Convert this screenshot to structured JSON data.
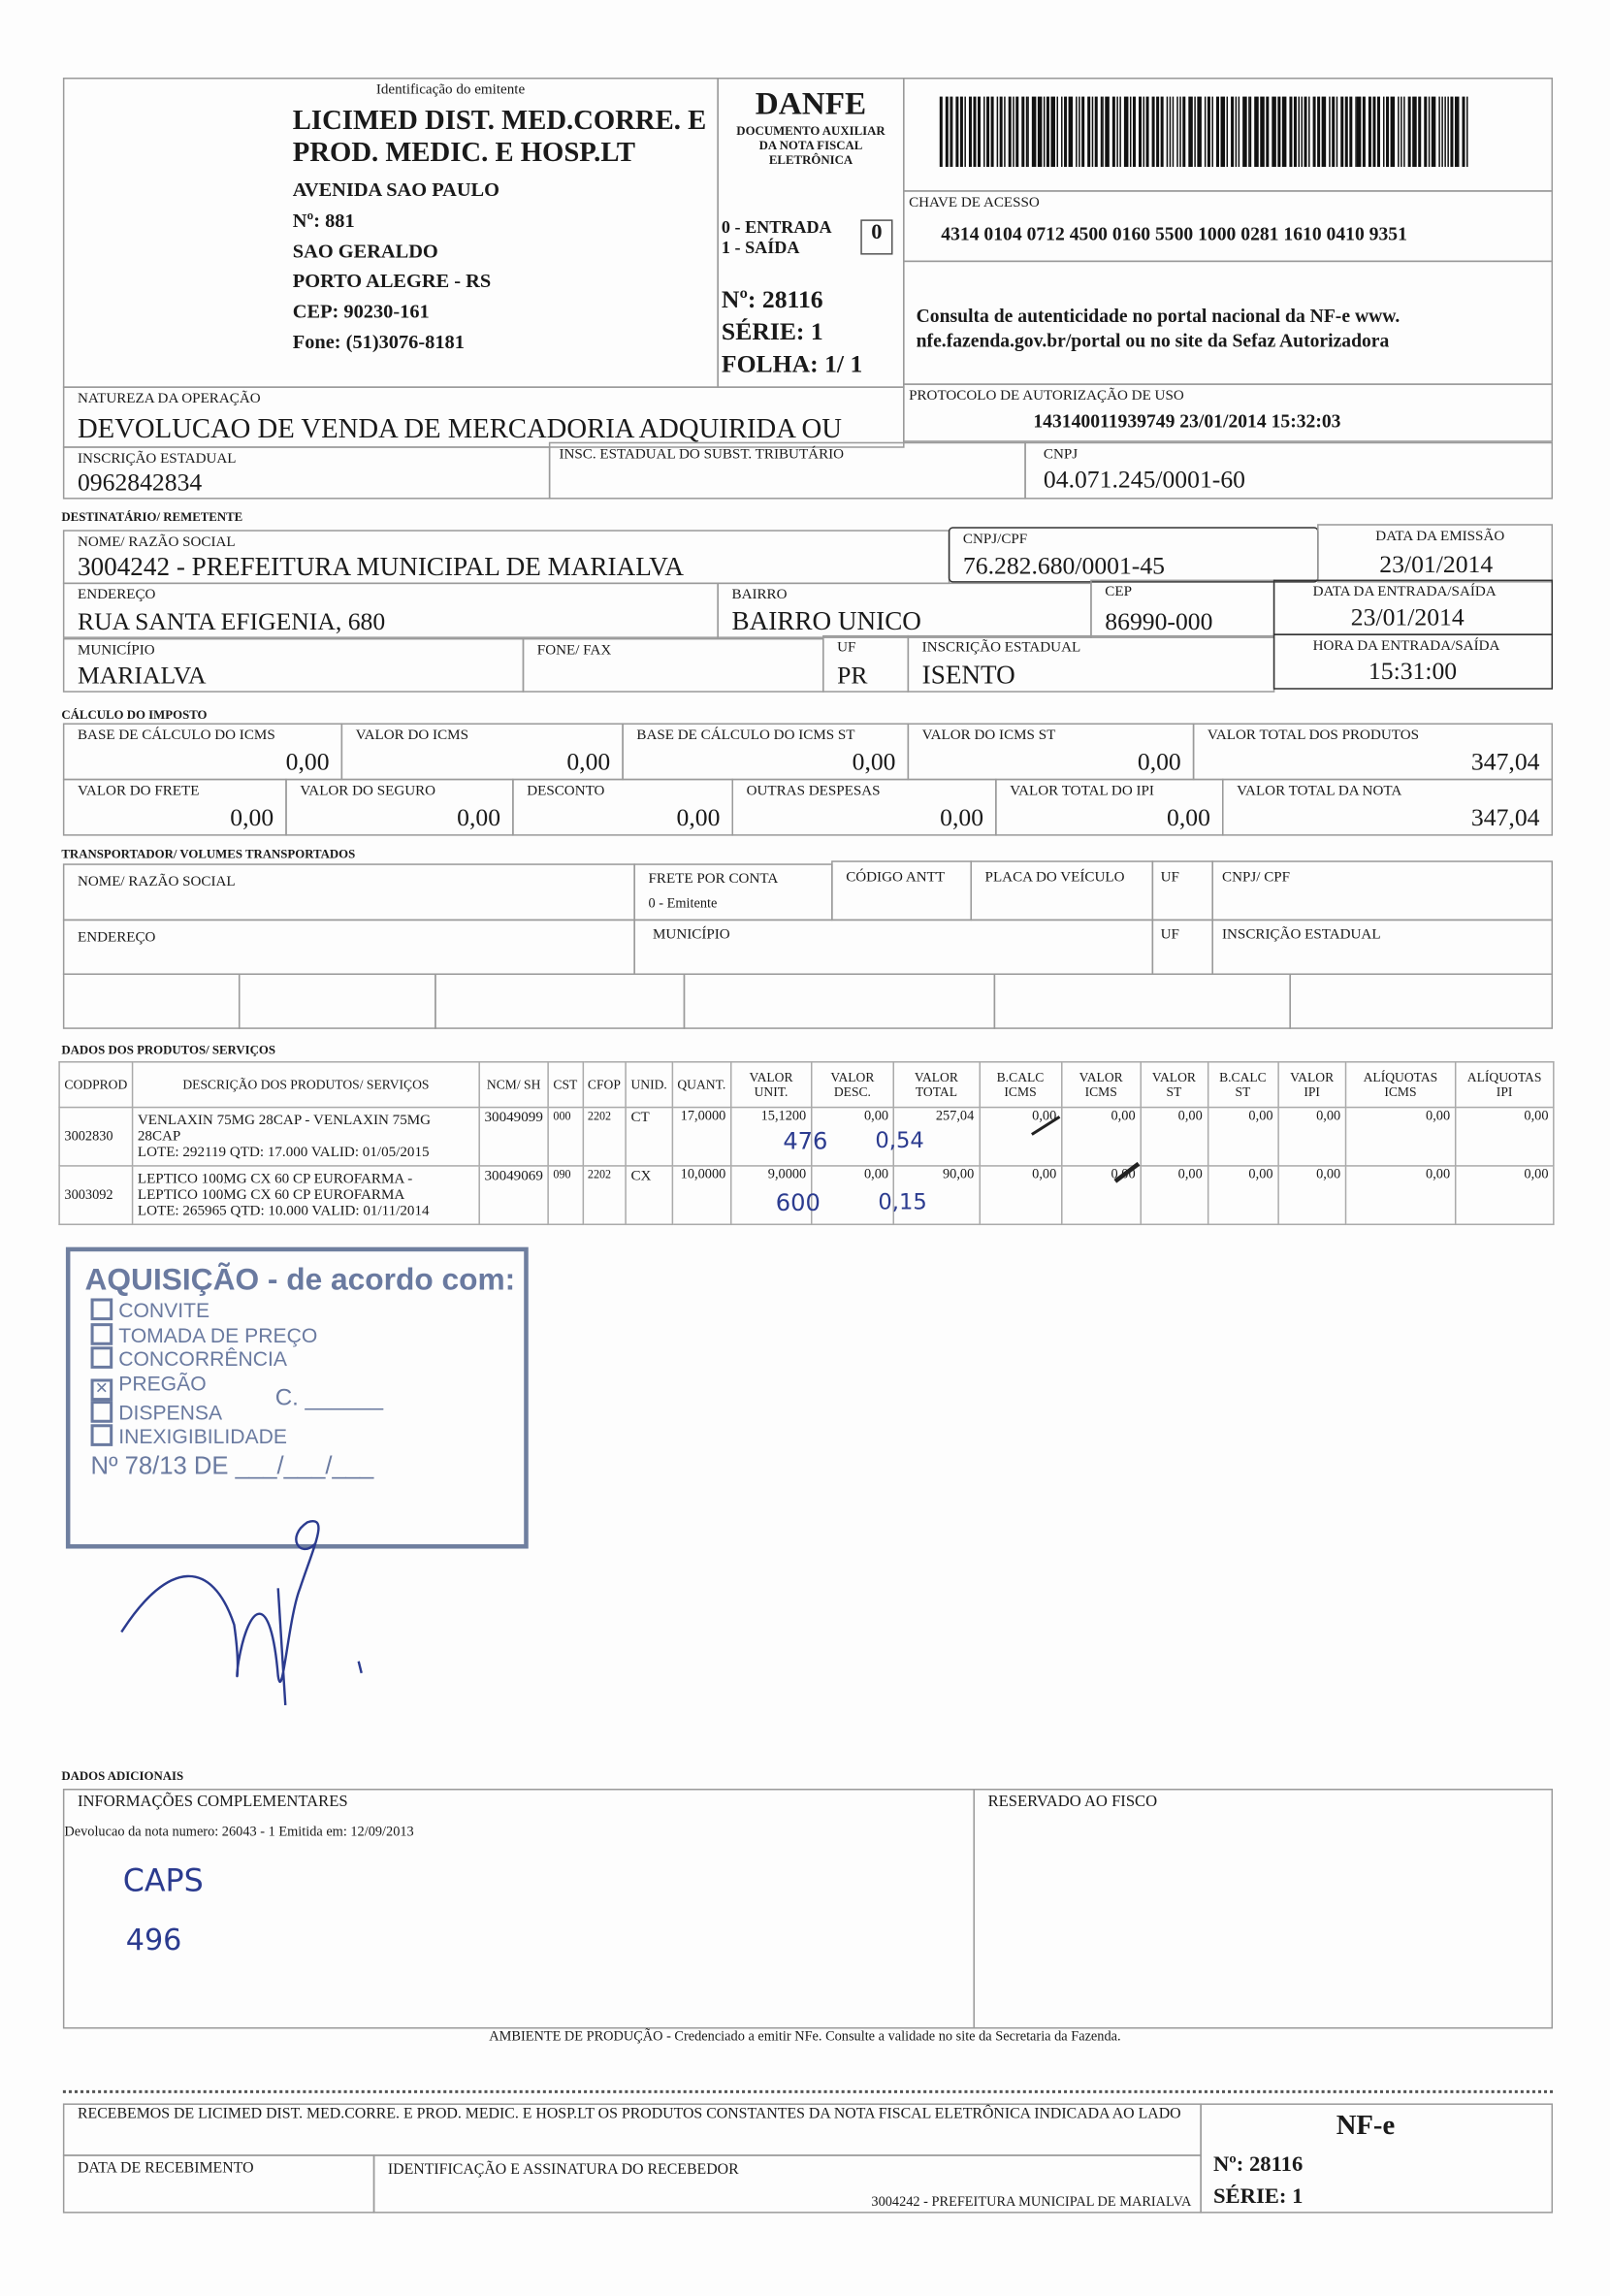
{
  "emitente": {
    "label": "Identificação do emitente",
    "name": "LICIMED DIST. MED.CORRE. E PROD. MEDIC. E HOSP.LT",
    "lines": [
      "AVENIDA SAO PAULO",
      "Nº: 881",
      "SAO GERALDO",
      "PORTO ALEGRE - RS",
      "CEP: 90230-161",
      "Fone: (51)3076-8181"
    ]
  },
  "danfe": {
    "title": "DANFE",
    "subtitle": "DOCUMENTO AUXILIAR DA NOTA FISCAL ELETRÔNICA",
    "entrada": "0 - ENTRADA",
    "saida": "1 - SAÍDA",
    "tipo": "0",
    "numero": "Nº: 28116",
    "serie": "SÉRIE: 1",
    "folha": "FOLHA: 1/ 1"
  },
  "chave": {
    "label": "CHAVE DE ACESSO",
    "value": "4314 0104 0712 4500 0160 5500 1000 0281 1610 0410 9351"
  },
  "consulta": "Consulta de autenticidade no portal nacional da NF-e www. nfe.fazenda.gov.br/portal ou no site da Sefaz Autorizadora",
  "natureza": {
    "label": "NATUREZA DA OPERAÇÃO",
    "value": "DEVOLUCAO DE VENDA DE MERCADORIA ADQUIRIDA OU"
  },
  "protocolo": {
    "label": "PROTOCOLO DE AUTORIZAÇÃO DE USO",
    "value": "143140011939749  23/01/2014 15:32:03"
  },
  "ie": {
    "label": "INSCRIÇÃO ESTADUAL",
    "value": "0962842834"
  },
  "ie_st": {
    "label": "INSC. ESTADUAL DO SUBST. TRIBUTÁRIO",
    "value": ""
  },
  "cnpj": {
    "label": "CNPJ",
    "value": "04.071.245/0001-60"
  },
  "dest": {
    "section": "DESTINATÁRIO/ REMETENTE",
    "nome": {
      "label": "NOME/ RAZÃO SOCIAL",
      "value": "3004242 - PREFEITURA MUNICIPAL DE MARIALVA"
    },
    "cnpj": {
      "label": "CNPJ/CPF",
      "value": "76.282.680/0001-45"
    },
    "emissao": {
      "label": "DATA DA EMISSÃO",
      "value": "23/01/2014"
    },
    "endereco": {
      "label": "ENDEREÇO",
      "value": "RUA SANTA EFIGENIA, 680"
    },
    "bairro": {
      "label": "BAIRRO",
      "value": "BAIRRO UNICO"
    },
    "cep": {
      "label": "CEP",
      "value": "86990-000"
    },
    "entrada": {
      "label": "DATA DA ENTRADA/SAÍDA",
      "value": "23/01/2014"
    },
    "municipio": {
      "label": "MUNICÍPIO",
      "value": "MARIALVA"
    },
    "fone": {
      "label": "FONE/ FAX",
      "value": ""
    },
    "uf": {
      "label": "UF",
      "value": "PR"
    },
    "ie": {
      "label": "INSCRIÇÃO ESTADUAL",
      "value": "ISENTO"
    },
    "hora": {
      "label": "HORA DA ENTRADA/SAÍDA",
      "value": "15:31:00"
    }
  },
  "imposto": {
    "section": "CÁLCULO DO IMPOSTO",
    "row1": [
      {
        "label": "BASE DE CÁLCULO DO ICMS",
        "value": "0,00"
      },
      {
        "label": "VALOR DO ICMS",
        "value": "0,00"
      },
      {
        "label": "BASE DE CÁLCULO DO ICMS ST",
        "value": "0,00"
      },
      {
        "label": "VALOR DO ICMS ST",
        "value": "0,00"
      },
      {
        "label": "VALOR TOTAL DOS PRODUTOS",
        "value": "347,04"
      }
    ],
    "row2": [
      {
        "label": "VALOR DO FRETE",
        "value": "0,00"
      },
      {
        "label": "VALOR DO SEGURO",
        "value": "0,00"
      },
      {
        "label": "DESCONTO",
        "value": "0,00"
      },
      {
        "label": "OUTRAS DESPESAS",
        "value": "0,00"
      },
      {
        "label": "VALOR TOTAL DO IPI",
        "value": "0,00"
      },
      {
        "label": "VALOR TOTAL DA NOTA",
        "value": "347,04"
      }
    ]
  },
  "transp": {
    "section": "TRANSPORTADOR/ VOLUMES TRANSPORTADOS",
    "nome": "NOME/ RAZÃO SOCIAL",
    "frete": "FRETE POR CONTA",
    "frete_val": "0 - Emitente",
    "antt": "CÓDIGO ANTT",
    "placa": "PLACA DO VEÍCULO",
    "uf": "UF",
    "cnpj": "CNPJ/ CPF",
    "endereco": "ENDEREÇO",
    "municipio": "MUNICÍPIO",
    "uf2": "UF",
    "ie": "INSCRIÇÃO ESTADUAL"
  },
  "produtos": {
    "section": "DADOS DOS PRODUTOS/ SERVIÇOS",
    "headers": [
      "CODPROD",
      "DESCRIÇÃO DOS PRODUTOS/ SERVIÇOS",
      "NCM/ SH",
      "CST",
      "CFOP",
      "UNID.",
      "QUANT.",
      "VALOR UNIT.",
      "VALOR DESC.",
      "VALOR TOTAL",
      "B.CALC ICMS",
      "VALOR ICMS",
      "VALOR ST",
      "B.CALC ST",
      "VALOR IPI",
      "ALÍQUOTAS ICMS",
      "ALÍQUOTAS IPI"
    ],
    "rows": [
      [
        "3002830",
        "VENLAXIN 75MG 28CAP - VENLAXIN 75MG 28CAP\nLOTE: 292119 QTD: 17.000 VALID: 01/05/2015",
        "30049099",
        "000",
        "2202",
        "CT",
        "17,0000",
        "15,1200",
        "0,00",
        "257,04",
        "0,00",
        "0,00",
        "0,00",
        "0,00",
        "0,00",
        "0,00",
        "0,00"
      ],
      [
        "3003092",
        "LEPTICO 100MG CX 60 CP EUROFARMA - LEPTICO 100MG CX 60 CP EUROFARMA\nLOTE: 265965 QTD: 10.000 VALID: 01/11/2014",
        "30049069",
        "090",
        "2202",
        "CX",
        "10,0000",
        "9,0000",
        "0,00",
        "90,00",
        "0,00",
        "0,00",
        "0,00",
        "0,00",
        "0,00",
        "0,00",
        "0,00"
      ]
    ],
    "handwritten": [
      [
        "476",
        "0,54"
      ],
      [
        "600",
        "0,15"
      ]
    ]
  },
  "stamp": {
    "title": "AQUISIÇÃO - de acordo com:",
    "items": [
      {
        "label": "CONVITE",
        "checked": false
      },
      {
        "label": "TOMADA DE PREÇO",
        "checked": false
      },
      {
        "label": "CONCORRÊNCIA",
        "checked": false
      },
      {
        "label": "PREGÃO",
        "checked": true
      },
      {
        "label": "DISPENSA",
        "checked": false
      },
      {
        "label": "INEXIGIBILIDADE",
        "checked": false
      }
    ],
    "c": "C. ______",
    "numero": "Nº 78/13  DE ___/___/___"
  },
  "adicionais": {
    "section": "DADOS ADICIONAIS",
    "info_label": "INFORMAÇÕES COMPLEMENTARES",
    "info": "Devolucao da nota numero: 26043 - 1 Emitida em: 12/09/2013",
    "hand1": "CAPS",
    "hand2": "496",
    "fisco": "RESERVADO AO FISCO"
  },
  "ambiente": "AMBIENTE DE PRODUÇÃO - Credenciado a emitir NFe. Consulte a validade no site da Secretaria da Fazenda.",
  "canhoto": {
    "recebemos": "RECEBEMOS DE LICIMED DIST. MED.CORRE. E PROD. MEDIC. E HOSP.LT OS PRODUTOS CONSTANTES DA NOTA FISCAL ELETRÔNICA INDICADA AO LADO",
    "data": "DATA DE RECEBIMENTO",
    "ident": "IDENTIFICAÇÃO E ASSINATURA DO RECEBEDOR",
    "dest": "3004242 - PREFEITURA MUNICIPAL DE MARIALVA",
    "nfe": "NF-e",
    "numero": "Nº: 28116",
    "serie": "SÉRIE: 1"
  }
}
